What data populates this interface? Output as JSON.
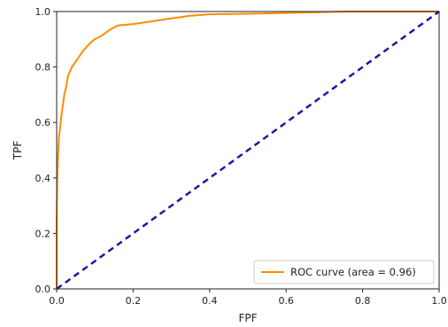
{
  "chart_data": {
    "type": "line",
    "title": "",
    "xlabel": "FPF",
    "ylabel": "TPF",
    "xlim": [
      0.0,
      1.0
    ],
    "ylim": [
      0.0,
      1.0
    ],
    "x_ticks": [
      "0.0",
      "0.2",
      "0.4",
      "0.6",
      "0.8",
      "1.0"
    ],
    "y_ticks": [
      "0.0",
      "0.2",
      "0.4",
      "0.6",
      "0.8",
      "1.0"
    ],
    "grid": false,
    "legend_position": "lower-right",
    "series": [
      {
        "name": "ROC curve (area = 0.96)",
        "color": "#ff8c00",
        "style": "solid",
        "points": [
          [
            0.0,
            0.0
          ],
          [
            0.0,
            0.25
          ],
          [
            0.002,
            0.42
          ],
          [
            0.004,
            0.49
          ],
          [
            0.006,
            0.55
          ],
          [
            0.008,
            0.57
          ],
          [
            0.012,
            0.62
          ],
          [
            0.016,
            0.66
          ],
          [
            0.02,
            0.7
          ],
          [
            0.025,
            0.73
          ],
          [
            0.03,
            0.77
          ],
          [
            0.04,
            0.8
          ],
          [
            0.05,
            0.82
          ],
          [
            0.06,
            0.84
          ],
          [
            0.07,
            0.86
          ],
          [
            0.08,
            0.875
          ],
          [
            0.09,
            0.89
          ],
          [
            0.1,
            0.9
          ],
          [
            0.12,
            0.915
          ],
          [
            0.14,
            0.935
          ],
          [
            0.16,
            0.95
          ],
          [
            0.2,
            0.955
          ],
          [
            0.25,
            0.965
          ],
          [
            0.3,
            0.975
          ],
          [
            0.35,
            0.985
          ],
          [
            0.4,
            0.99
          ],
          [
            0.5,
            0.992
          ],
          [
            0.6,
            0.995
          ],
          [
            0.76,
            1.0
          ],
          [
            1.0,
            1.0
          ]
        ]
      },
      {
        "name": "",
        "color": "#1a1aa0",
        "style": "dashed",
        "points": [
          [
            0.0,
            0.0
          ],
          [
            1.0,
            1.0
          ]
        ]
      }
    ]
  }
}
